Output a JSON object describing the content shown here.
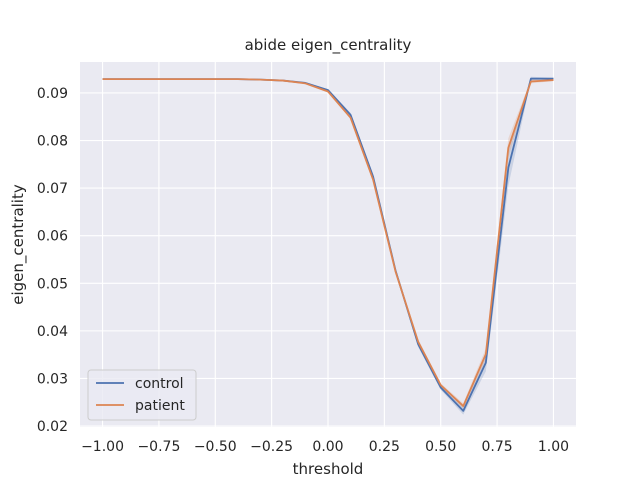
{
  "chart_data": {
    "type": "line",
    "title": "abide eigen_centrality",
    "xlabel": "threshold",
    "ylabel": "eigen_centrality",
    "xlim": [
      -1.1,
      1.1
    ],
    "ylim": [
      0.0198,
      0.0965
    ],
    "x_ticks": [
      -1.0,
      -0.75,
      -0.5,
      -0.25,
      0.0,
      0.25,
      0.5,
      0.75,
      1.0
    ],
    "x_tick_labels": [
      "−1.00",
      "−0.75",
      "−0.50",
      "−0.25",
      "0.00",
      "0.25",
      "0.50",
      "0.75",
      "1.00"
    ],
    "y_ticks": [
      0.02,
      0.03,
      0.04,
      0.05,
      0.06,
      0.07,
      0.08,
      0.09
    ],
    "y_tick_labels": [
      "0.02",
      "0.03",
      "0.04",
      "0.05",
      "0.06",
      "0.07",
      "0.08",
      "0.09"
    ],
    "grid": true,
    "legend_position": "lower-left",
    "x": [
      -1.0,
      -0.9,
      -0.8,
      -0.7,
      -0.6,
      -0.5,
      -0.4,
      -0.3,
      -0.2,
      -0.1,
      0.0,
      0.1,
      0.2,
      0.3,
      0.4,
      0.5,
      0.6,
      0.7,
      0.8,
      0.9,
      1.0
    ],
    "series": [
      {
        "name": "control",
        "color": "#4c72b0",
        "values": [
          0.0929,
          0.0929,
          0.0929,
          0.0929,
          0.0929,
          0.0929,
          0.0929,
          0.0928,
          0.0926,
          0.0921,
          0.0906,
          0.0854,
          0.0724,
          0.0526,
          0.0372,
          0.0281,
          0.0232,
          0.0333,
          0.0743,
          0.093,
          0.093
        ],
        "band_low": [
          0.0929,
          0.0929,
          0.0929,
          0.0929,
          0.0929,
          0.0929,
          0.0929,
          0.0928,
          0.0926,
          0.092,
          0.0904,
          0.085,
          0.0718,
          0.052,
          0.0366,
          0.0276,
          0.0224,
          0.0315,
          0.0705,
          0.0926,
          0.0928
        ],
        "band_high": [
          0.0929,
          0.0929,
          0.0929,
          0.0929,
          0.0929,
          0.0929,
          0.0929,
          0.0928,
          0.0926,
          0.0922,
          0.0908,
          0.0858,
          0.073,
          0.0532,
          0.0378,
          0.0286,
          0.024,
          0.0351,
          0.0781,
          0.0934,
          0.0932
        ]
      },
      {
        "name": "patient",
        "color": "#dd8452",
        "values": [
          0.0929,
          0.0929,
          0.0929,
          0.0929,
          0.0929,
          0.0929,
          0.0929,
          0.0928,
          0.0926,
          0.092,
          0.0903,
          0.0848,
          0.0718,
          0.0524,
          0.0377,
          0.0286,
          0.0242,
          0.0351,
          0.0785,
          0.0924,
          0.0927
        ],
        "band_low": [
          0.0929,
          0.0929,
          0.0929,
          0.0929,
          0.0929,
          0.0929,
          0.0929,
          0.0928,
          0.0926,
          0.0919,
          0.0901,
          0.0845,
          0.0713,
          0.0519,
          0.0372,
          0.0282,
          0.0236,
          0.0339,
          0.0765,
          0.092,
          0.0925
        ],
        "band_high": [
          0.0929,
          0.0929,
          0.0929,
          0.0929,
          0.0929,
          0.0929,
          0.0929,
          0.0928,
          0.0926,
          0.0921,
          0.0905,
          0.0851,
          0.0723,
          0.0529,
          0.0382,
          0.029,
          0.0248,
          0.0363,
          0.0805,
          0.0928,
          0.0929
        ]
      }
    ]
  },
  "colors": {
    "plot_background": "#eaeaf2",
    "grid": "#ffffff",
    "text": "#262626"
  }
}
